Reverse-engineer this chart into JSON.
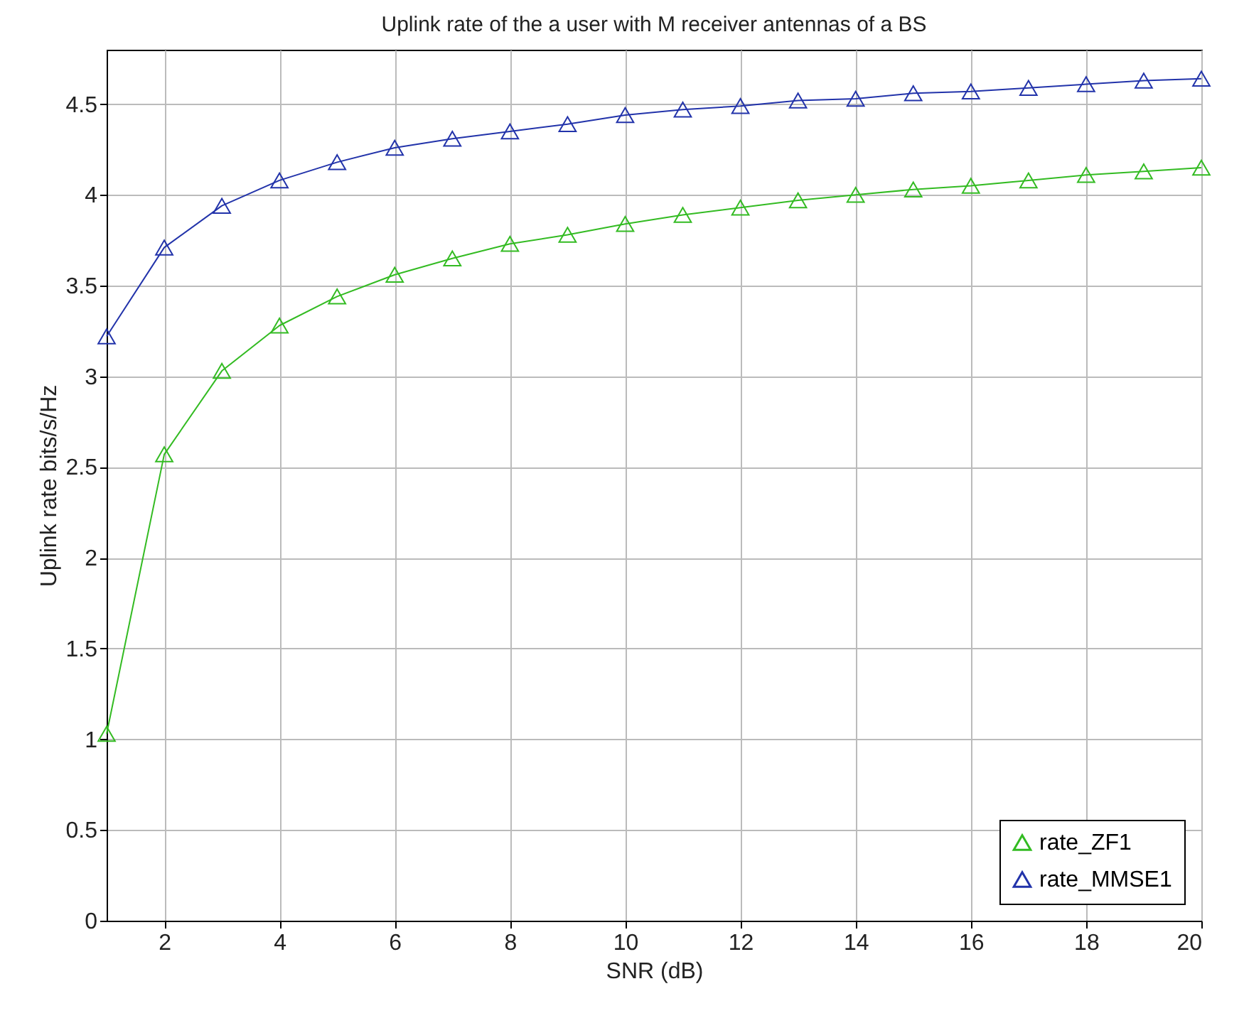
{
  "chart_data": {
    "type": "line",
    "title": "Uplink rate of the a user with M receiver antennas of a BS",
    "xlabel": "SNR (dB)",
    "ylabel": "Uplink rate bits/s/Hz",
    "x": [
      1,
      2,
      3,
      4,
      5,
      6,
      7,
      8,
      9,
      10,
      11,
      12,
      13,
      14,
      15,
      16,
      17,
      18,
      19,
      20
    ],
    "series": [
      {
        "name": "rate_ZF1",
        "color": "#33bb22",
        "values": [
          1.03,
          2.57,
          3.03,
          3.28,
          3.44,
          3.56,
          3.65,
          3.73,
          3.78,
          3.84,
          3.89,
          3.93,
          3.97,
          4.0,
          4.03,
          4.05,
          4.08,
          4.11,
          4.13,
          4.15
        ]
      },
      {
        "name": "rate_MMSE1",
        "color": "#2233aa",
        "values": [
          3.22,
          3.71,
          3.94,
          4.08,
          4.18,
          4.26,
          4.31,
          4.35,
          4.39,
          4.44,
          4.47,
          4.49,
          4.52,
          4.53,
          4.56,
          4.57,
          4.59,
          4.61,
          4.63,
          4.64
        ]
      }
    ],
    "xlim": [
      1,
      20
    ],
    "xticks": [
      2,
      4,
      6,
      8,
      10,
      12,
      14,
      16,
      18,
      20
    ],
    "ylim": [
      0,
      4.8
    ],
    "yticks": [
      0,
      0.5,
      1,
      1.5,
      2,
      2.5,
      3,
      3.5,
      4,
      4.5
    ],
    "grid": true,
    "legend": "bottom right",
    "marker": "triangle",
    "line_style": "solid"
  }
}
